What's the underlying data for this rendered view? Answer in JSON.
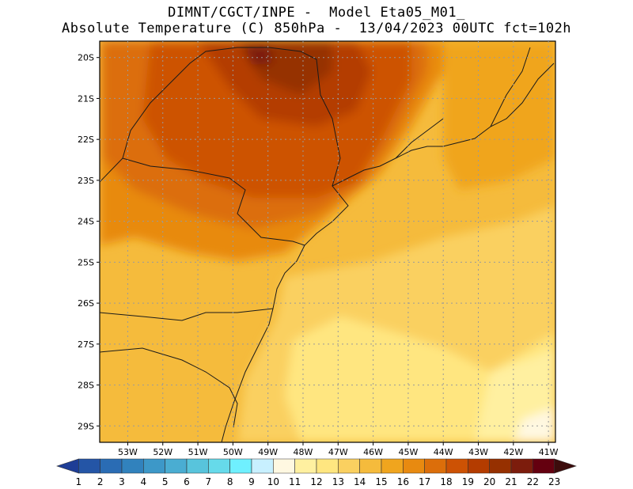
{
  "title": {
    "line1": "DIMNT/CGCT/INPE -  Model Eta05_M01_",
    "line2": "Absolute Temperature (C) 850hPa -  13/04/2023 00UTC fct=102h"
  },
  "map": {
    "lat_range": [
      -29.4,
      -19.6
    ],
    "lon_range": [
      -53.8,
      -40.8
    ],
    "lat_labels": [
      "20S",
      "21S",
      "22S",
      "23S",
      "24S",
      "25S",
      "26S",
      "27S",
      "28S",
      "29S"
    ],
    "lon_labels": [
      "53W",
      "52W",
      "51W",
      "50W",
      "49W",
      "48W",
      "47W",
      "46W",
      "45W",
      "44W",
      "43W",
      "42W",
      "41W"
    ],
    "grid": "dotted"
  },
  "colorbar": {
    "labels": [
      "1",
      "2",
      "3",
      "4",
      "5",
      "6",
      "7",
      "8",
      "9",
      "10",
      "11",
      "12",
      "13",
      "14",
      "15",
      "16",
      "17",
      "18",
      "19",
      "20",
      "21",
      "22",
      "23"
    ],
    "colors": [
      "#1e3d96",
      "#2455a6",
      "#2a6cb4",
      "#3182bd",
      "#3d98c8",
      "#4aadd2",
      "#58c4dc",
      "#66daea",
      "#6ff0ff",
      "#c8f0ff",
      "#fff8e1",
      "#fff0a0",
      "#ffe680",
      "#fad060",
      "#f5bb3c",
      "#f0a51e",
      "#e88a10",
      "#dc6e0a",
      "#cd5204",
      "#b43c00",
      "#963000",
      "#7c1c0c",
      "#64000f",
      "#3c0c0c"
    ]
  }
}
